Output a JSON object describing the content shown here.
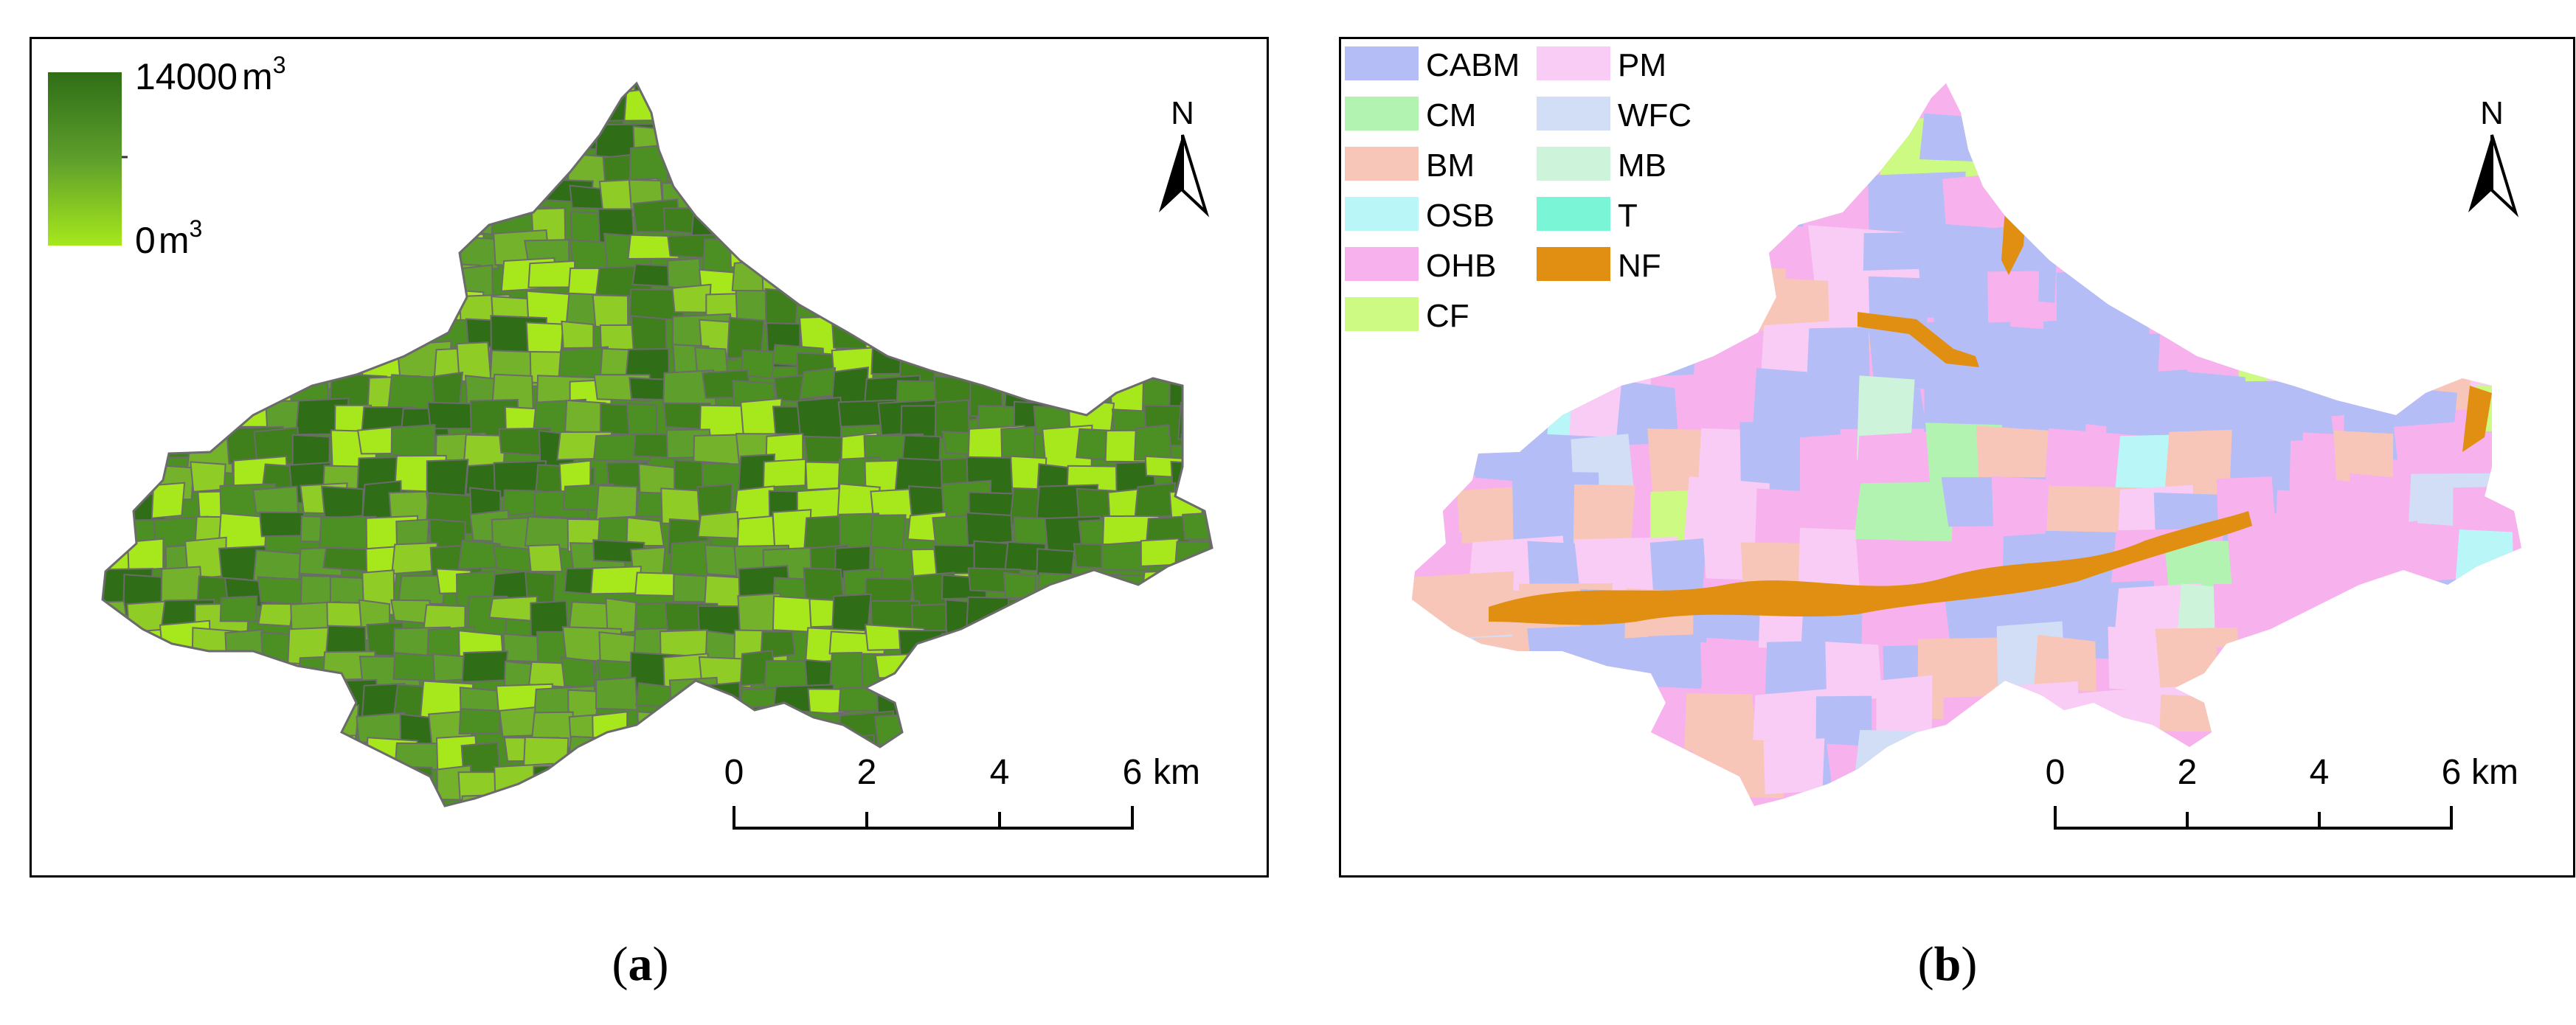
{
  "panels": [
    {
      "id": "a",
      "caption_letter": "a",
      "legend": {
        "max_label": "14000",
        "min_label": "0",
        "unit": "m",
        "unit_sup": "3",
        "ramp_colors": [
          "#2f6e16",
          "#5e9e2c",
          "#a6e81c"
        ]
      },
      "north_label": "N",
      "scale_bar": {
        "ticks": [
          "0",
          "2",
          "4",
          "6"
        ],
        "unit": "km"
      },
      "fill_palette": [
        "#2f6e16",
        "#3f7f1c",
        "#4c8f22",
        "#5e9e2c",
        "#74b22b",
        "#8fcc25",
        "#a6e81c"
      ]
    },
    {
      "id": "b",
      "caption_letter": "b",
      "legend": {
        "items": [
          {
            "code": "CABM",
            "color": "#b4bdf5"
          },
          {
            "code": "CM",
            "color": "#b3f3b2"
          },
          {
            "code": "BM",
            "color": "#f8c6b8"
          },
          {
            "code": "OSB",
            "color": "#b8f6f7"
          },
          {
            "code": "OHB",
            "color": "#f7b2ee"
          },
          {
            "code": "CF",
            "color": "#ccfa82"
          },
          {
            "code": "PM",
            "color": "#f8ccf5"
          },
          {
            "code": "WFC",
            "color": "#d1def6"
          },
          {
            "code": "MB",
            "color": "#cdf4da"
          },
          {
            "code": "T",
            "color": "#7af5d6"
          },
          {
            "code": "NF",
            "color": "#e08f12"
          }
        ]
      },
      "north_label": "N",
      "scale_bar": {
        "ticks": [
          "0",
          "2",
          "4",
          "6"
        ],
        "unit": "km"
      }
    }
  ]
}
